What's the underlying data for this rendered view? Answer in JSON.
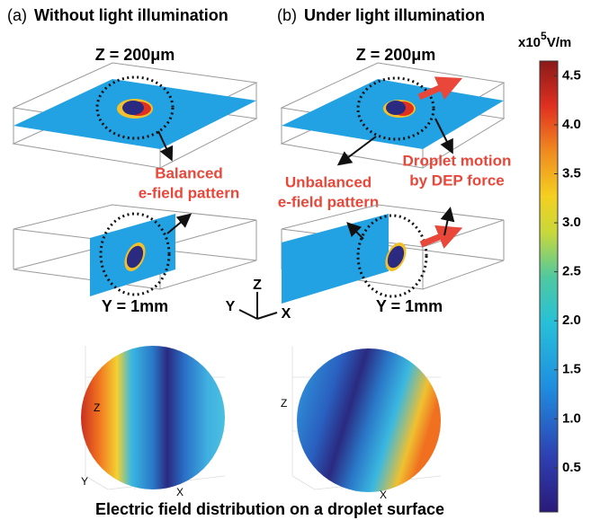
{
  "panel_a": {
    "label": "(a)",
    "title": "Without light illumination",
    "top_label": "Z = 200μm",
    "bottom_label": "Y = 1mm",
    "annotation": [
      "Balanced",
      "e-field pattern"
    ]
  },
  "panel_b": {
    "label": "(b)",
    "title": "Under light illumination",
    "top_label": "Z = 200μm",
    "bottom_label": "Y = 1mm",
    "annotation_left": [
      "Unbalanced",
      "e-field pattern"
    ],
    "annotation_right": [
      "Droplet motion",
      "by DEP force"
    ]
  },
  "axes_triad": {
    "z": "Z",
    "y": "Y",
    "x": "X"
  },
  "sphere_a_axes": {
    "z": "Z",
    "y": "Y",
    "x": "X"
  },
  "sphere_b_axes": {
    "z": "Z",
    "x": "X"
  },
  "caption": "Electric field distribution on a droplet surface",
  "colorbar": {
    "unit_prefix": "x10",
    "unit_exponent": "5",
    "unit_suffix": "V/m",
    "clim": [
      0.05,
      4.65
    ],
    "ticks": [
      0.5,
      {
        "value": 1,
        "label": "1.0"
      },
      1.5,
      {
        "value": 2,
        "label": "2.0"
      },
      2.5,
      {
        "value": 3,
        "label": "3.0"
      },
      3.5,
      {
        "value": 4,
        "label": "4.0"
      },
      4.5
    ]
  }
}
